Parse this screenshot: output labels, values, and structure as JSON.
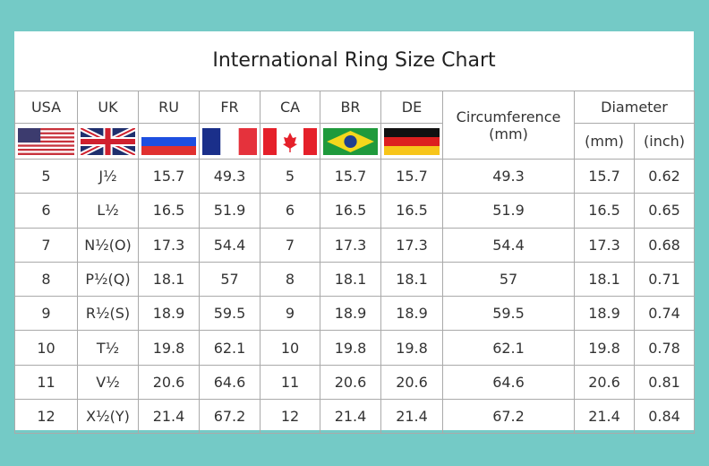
{
  "title": "International Ring Size Chart",
  "headers": {
    "usa": "USA",
    "uk": "UK",
    "ru": "RU",
    "fr": "FR",
    "ca": "CA",
    "br": "BR",
    "de": "DE",
    "circumference": "Circumference",
    "circumference_unit": "(mm)",
    "diameter": "Diameter",
    "diameter_mm": "(mm)",
    "diameter_inch": "(inch)"
  },
  "flags": [
    "us-flag",
    "uk-flag",
    "russia-flag",
    "france-flag",
    "canada-flag",
    "brazil-flag",
    "germany-flag"
  ],
  "colors": {
    "background": "#74cac6",
    "border": "#aaaaaa"
  },
  "rows": [
    [
      "5",
      "J½",
      "15.7",
      "49.3",
      "5",
      "15.7",
      "15.7",
      "49.3",
      "15.7",
      "0.62"
    ],
    [
      "6",
      "L½",
      "16.5",
      "51.9",
      "6",
      "16.5",
      "16.5",
      "51.9",
      "16.5",
      "0.65"
    ],
    [
      "7",
      "N½(O)",
      "17.3",
      "54.4",
      "7",
      "17.3",
      "17.3",
      "54.4",
      "17.3",
      "0.68"
    ],
    [
      "8",
      "P½(Q)",
      "18.1",
      "57",
      "8",
      "18.1",
      "18.1",
      "57",
      "18.1",
      "0.71"
    ],
    [
      "9",
      "R½(S)",
      "18.9",
      "59.5",
      "9",
      "18.9",
      "18.9",
      "59.5",
      "18.9",
      "0.74"
    ],
    [
      "10",
      "T½",
      "19.8",
      "62.1",
      "10",
      "19.8",
      "19.8",
      "62.1",
      "19.8",
      "0.78"
    ],
    [
      "11",
      "V½",
      "20.6",
      "64.6",
      "11",
      "20.6",
      "20.6",
      "64.6",
      "20.6",
      "0.81"
    ],
    [
      "12",
      "X½(Y)",
      "21.4",
      "67.2",
      "12",
      "21.4",
      "21.4",
      "67.2",
      "21.4",
      "0.84"
    ]
  ]
}
